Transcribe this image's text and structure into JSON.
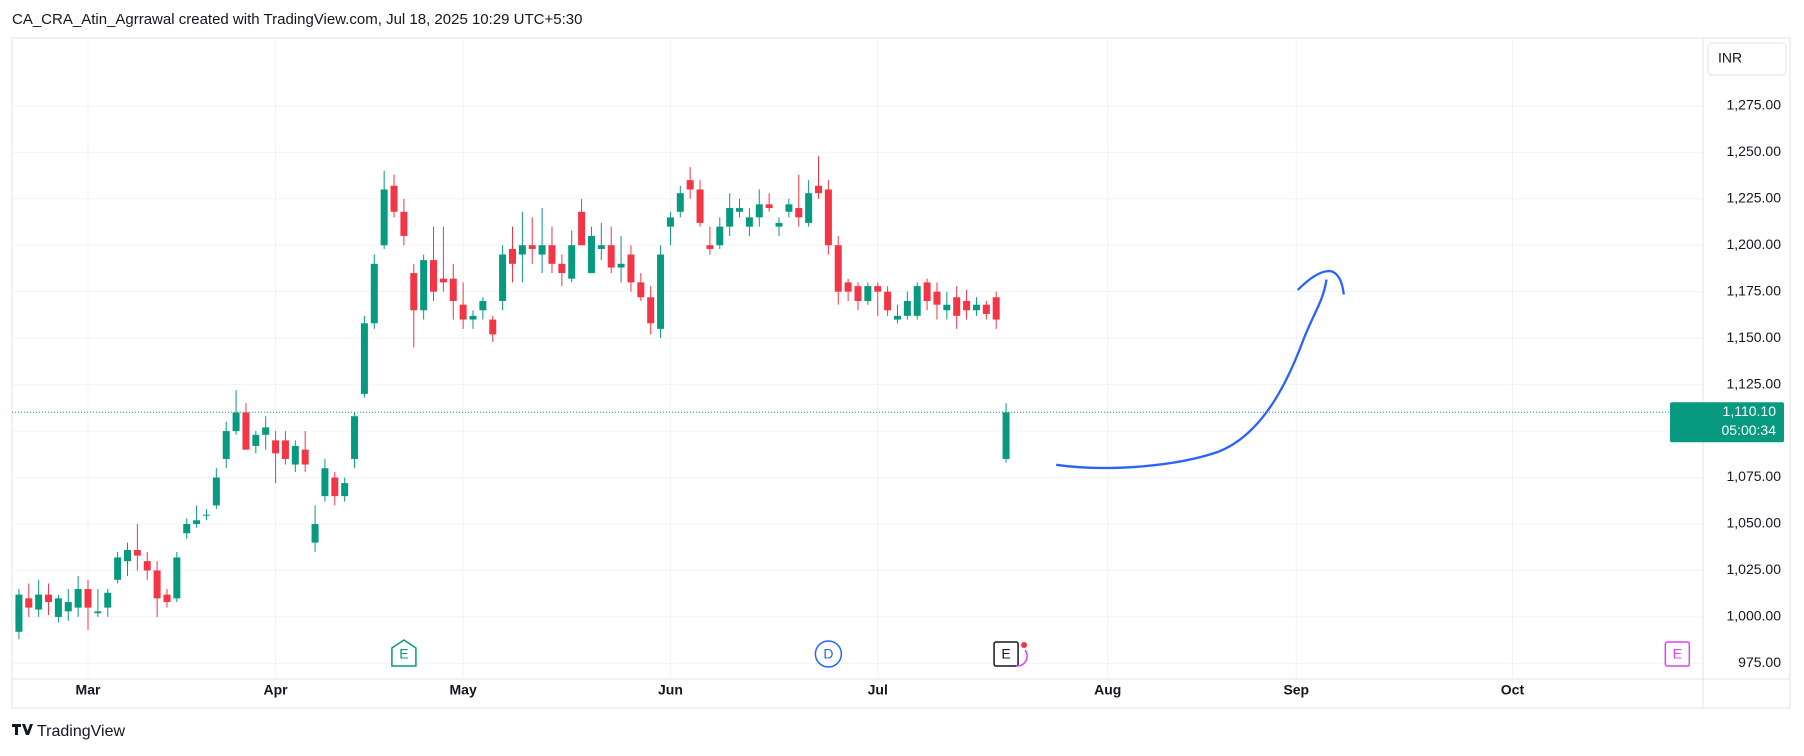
{
  "header": "CA_CRA_Atin_Agrrawal created with TradingView.com, Jul 18, 2025 10:29 UTC+5:30",
  "currency": "INR",
  "logo": "TradingView",
  "chart_data": {
    "type": "candlestick",
    "up_color": "#089981",
    "down_color": "#f23645",
    "open": [
      992,
      1010,
      1004,
      1012,
      1000,
      1003,
      1005,
      1015,
      1002,
      1005,
      1020,
      1030,
      1036,
      1030,
      1025,
      1012,
      1010,
      1045,
      1050,
      1055,
      1060,
      1085,
      1100,
      1110,
      1092,
      1098,
      1095,
      1095,
      1082,
      1090,
      1040,
      1065,
      1075,
      1065,
      1085,
      1120,
      1158,
      1200,
      1232,
      1218,
      1185,
      1165,
      1192,
      1182,
      1182,
      1168,
      1160,
      1165,
      1160,
      1170,
      1198,
      1195,
      1200,
      1195,
      1200,
      1190,
      1182,
      1218,
      1185,
      1198,
      1200,
      1188,
      1195,
      1180,
      1172,
      1155,
      1210,
      1218,
      1235,
      1230,
      1200,
      1200,
      1210,
      1218,
      1210,
      1215,
      1222,
      1210,
      1218,
      1220,
      1212,
      1232,
      1230,
      1200,
      1180,
      1178,
      1170,
      1178,
      1175,
      1160,
      1162,
      1162,
      1180,
      1175,
      1165,
      1172,
      1170,
      1165,
      1168,
      1172,
      1085
    ],
    "high": [
      1015,
      1018,
      1020,
      1018,
      1012,
      1015,
      1022,
      1020,
      1015,
      1015,
      1035,
      1040,
      1050,
      1035,
      1030,
      1015,
      1035,
      1053,
      1060,
      1058,
      1080,
      1105,
      1122,
      1115,
      1100,
      1108,
      1100,
      1100,
      1095,
      1100,
      1060,
      1085,
      1078,
      1075,
      1110,
      1162,
      1195,
      1240,
      1238,
      1225,
      1190,
      1195,
      1210,
      1210,
      1190,
      1180,
      1165,
      1172,
      1162,
      1200,
      1210,
      1218,
      1215,
      1220,
      1210,
      1195,
      1208,
      1225,
      1210,
      1212,
      1210,
      1205,
      1200,
      1185,
      1178,
      1200,
      1218,
      1232,
      1242,
      1235,
      1210,
      1215,
      1228,
      1225,
      1220,
      1230,
      1228,
      1215,
      1225,
      1238,
      1235,
      1248,
      1235,
      1205,
      1182,
      1180,
      1180,
      1180,
      1178,
      1168,
      1175,
      1180,
      1182,
      1180,
      1175,
      1178,
      1176,
      1172,
      1170,
      1175,
      1115
    ],
    "low": [
      988,
      1000,
      1000,
      1001,
      997,
      998,
      1000,
      993,
      1000,
      1000,
      1018,
      1022,
      1025,
      1020,
      1000,
      1005,
      1008,
      1042,
      1048,
      1052,
      1058,
      1080,
      1098,
      1090,
      1088,
      1090,
      1072,
      1082,
      1078,
      1078,
      1035,
      1062,
      1060,
      1062,
      1080,
      1118,
      1155,
      1198,
      1215,
      1200,
      1145,
      1160,
      1170,
      1175,
      1160,
      1155,
      1155,
      1160,
      1148,
      1165,
      1180,
      1180,
      1190,
      1185,
      1185,
      1178,
      1180,
      1200,
      1185,
      1192,
      1185,
      1180,
      1175,
      1170,
      1152,
      1150,
      1200,
      1215,
      1225,
      1210,
      1195,
      1198,
      1205,
      1215,
      1205,
      1210,
      1218,
      1205,
      1215,
      1210,
      1210,
      1225,
      1195,
      1168,
      1170,
      1165,
      1168,
      1162,
      1162,
      1158,
      1160,
      1160,
      1165,
      1160,
      1160,
      1155,
      1160,
      1162,
      1160,
      1155,
      1083
    ],
    "close": [
      1012,
      1005,
      1012,
      1008,
      1010,
      1008,
      1015,
      1005,
      1003,
      1013,
      1032,
      1036,
      1033,
      1025,
      1010,
      1008,
      1032,
      1050,
      1052,
      1055,
      1075,
      1100,
      1110,
      1090,
      1098,
      1102,
      1088,
      1085,
      1092,
      1082,
      1050,
      1080,
      1065,
      1072,
      1108,
      1158,
      1190,
      1230,
      1218,
      1205,
      1165,
      1192,
      1175,
      1180,
      1170,
      1160,
      1162,
      1170,
      1152,
      1195,
      1190,
      1200,
      1198,
      1200,
      1190,
      1185,
      1200,
      1200,
      1205,
      1200,
      1188,
      1190,
      1180,
      1172,
      1158,
      1195,
      1215,
      1228,
      1230,
      1212,
      1198,
      1210,
      1220,
      1220,
      1215,
      1222,
      1220,
      1212,
      1222,
      1215,
      1228,
      1228,
      1200,
      1175,
      1175,
      1170,
      1178,
      1175,
      1165,
      1162,
      1170,
      1178,
      1170,
      1168,
      1168,
      1162,
      1165,
      1168,
      1163,
      1160,
      1110.1
    ],
    "xlim": [
      -0.7,
      170.6
    ],
    "xticks": [
      {
        "value": 7,
        "label": "Mar"
      },
      {
        "value": 26,
        "label": "Apr"
      },
      {
        "value": 45,
        "label": "May"
      },
      {
        "value": 66,
        "label": "Jun"
      },
      {
        "value": 87,
        "label": "Jul"
      },
      {
        "value": 110.3,
        "label": "Aug"
      },
      {
        "value": 129.4,
        "label": "Sep"
      },
      {
        "value": 151.3,
        "label": "Oct"
      }
    ],
    "ylim": [
      966.6,
      1311.5
    ],
    "yticks": [
      {
        "value": 975,
        "label": "975.00"
      },
      {
        "value": 1000,
        "label": "1,000.00"
      },
      {
        "value": 1025,
        "label": "1,025.00"
      },
      {
        "value": 1050,
        "label": "1,050.00"
      },
      {
        "value": 1075,
        "label": "1,075.00"
      },
      {
        "value": 1100,
        "label": "1,100.00"
      },
      {
        "value": 1125,
        "label": "1,125.00"
      },
      {
        "value": 1150,
        "label": "1,150.00"
      },
      {
        "value": 1175,
        "label": "1,175.00"
      },
      {
        "value": 1200,
        "label": "1,200.00"
      },
      {
        "value": 1225,
        "label": "1,225.00"
      },
      {
        "value": 1250,
        "label": "1,250.00"
      },
      {
        "value": 1275,
        "label": "1,275.00"
      }
    ],
    "grid": true,
    "last_price": {
      "value": 1110.1,
      "label": "1,110.10"
    },
    "countdown": "05:00:34",
    "event_markers": [
      "E",
      "D",
      "E",
      "E"
    ]
  }
}
